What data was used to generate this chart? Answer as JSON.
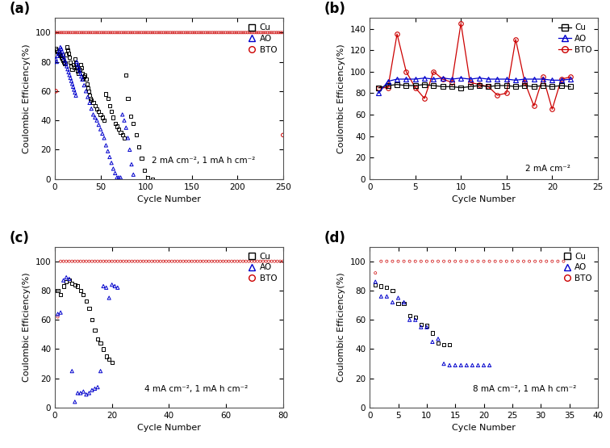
{
  "panel_a": {
    "title": "(a)",
    "xlabel": "Cycle Number",
    "ylabel": "Coulombic Efficiency(%)",
    "annotation": "2 mA cm⁻², 1 mA h cm⁻²",
    "xlim": [
      0,
      250
    ],
    "ylim": [
      0,
      110
    ],
    "xticks": [
      0,
      50,
      100,
      150,
      200,
      250
    ],
    "yticks": [
      0,
      20,
      40,
      60,
      80,
      100
    ],
    "Cu_x": [
      1,
      2,
      3,
      4,
      5,
      6,
      7,
      8,
      9,
      10,
      11,
      12,
      13,
      14,
      15,
      16,
      17,
      18,
      19,
      20,
      21,
      22,
      23,
      24,
      25,
      26,
      27,
      28,
      29,
      30,
      31,
      32,
      33,
      34,
      35,
      36,
      37,
      38,
      39,
      40,
      42,
      44,
      46,
      48,
      50,
      52,
      54,
      56,
      58,
      60,
      62,
      64,
      66,
      68,
      70,
      72,
      74,
      76,
      78,
      80,
      83,
      86,
      89,
      92,
      95,
      98,
      102,
      107
    ],
    "Cu_y": [
      89,
      88,
      87,
      86,
      85,
      84,
      83,
      82,
      81,
      80,
      79,
      85,
      90,
      88,
      86,
      83,
      80,
      77,
      75,
      78,
      76,
      82,
      79,
      76,
      74,
      72,
      75,
      78,
      76,
      72,
      68,
      70,
      71,
      68,
      65,
      62,
      60,
      57,
      55,
      54,
      52,
      50,
      48,
      46,
      44,
      42,
      40,
      58,
      55,
      50,
      46,
      42,
      38,
      36,
      34,
      32,
      30,
      28,
      71,
      55,
      43,
      38,
      30,
      22,
      14,
      6,
      1,
      0
    ],
    "AO_x": [
      1,
      2,
      3,
      4,
      5,
      6,
      7,
      8,
      9,
      10,
      11,
      12,
      13,
      14,
      15,
      16,
      17,
      18,
      19,
      20,
      21,
      22,
      23,
      24,
      25,
      26,
      27,
      28,
      29,
      30,
      32,
      34,
      36,
      38,
      40,
      42,
      44,
      46,
      48,
      50,
      52,
      54,
      56,
      58,
      60,
      62,
      64,
      66,
      68,
      70,
      72,
      74,
      76,
      78,
      80,
      82,
      84,
      86
    ],
    "AO_y": [
      82,
      80,
      84,
      86,
      88,
      90,
      89,
      87,
      85,
      83,
      81,
      79,
      77,
      75,
      73,
      71,
      69,
      67,
      65,
      63,
      61,
      59,
      57,
      80,
      78,
      76,
      74,
      72,
      70,
      68,
      64,
      60,
      56,
      52,
      48,
      44,
      42,
      40,
      37,
      34,
      31,
      28,
      23,
      19,
      15,
      11,
      7,
      4,
      1,
      1,
      1,
      44,
      40,
      35,
      28,
      20,
      10,
      3
    ],
    "BTO_x": [
      1,
      3,
      5,
      7,
      9,
      11,
      13,
      15,
      17,
      19,
      21,
      23,
      25,
      27,
      29,
      31,
      33,
      35,
      37,
      39,
      41,
      43,
      45,
      47,
      49,
      51,
      53,
      55,
      57,
      59,
      61,
      63,
      65,
      67,
      69,
      71,
      73,
      75,
      77,
      79,
      81,
      83,
      85,
      87,
      89,
      91,
      93,
      95,
      97,
      99,
      101,
      103,
      105,
      107,
      109,
      111,
      113,
      115,
      117,
      119,
      121,
      123,
      125,
      127,
      129,
      131,
      133,
      135,
      137,
      139,
      141,
      143,
      145,
      147,
      149,
      151,
      153,
      155,
      157,
      159,
      161,
      163,
      165,
      167,
      169,
      171,
      173,
      175,
      177,
      179,
      181,
      183,
      185,
      187,
      189,
      191,
      193,
      195,
      197,
      199,
      201,
      203,
      205,
      207,
      209,
      211,
      213,
      215,
      217,
      219,
      221,
      223,
      225,
      227,
      229,
      231,
      233,
      235,
      237,
      239,
      241,
      243,
      245,
      247,
      249
    ],
    "BTO_y": [
      100,
      100,
      100,
      100,
      100,
      100,
      100,
      100,
      100,
      100,
      100,
      100,
      100,
      100,
      100,
      100,
      100,
      100,
      100,
      100,
      100,
      100,
      100,
      100,
      100,
      100,
      100,
      100,
      100,
      100,
      100,
      100,
      100,
      100,
      100,
      100,
      100,
      100,
      100,
      100,
      100,
      100,
      100,
      100,
      100,
      100,
      100,
      100,
      100,
      100,
      100,
      100,
      100,
      100,
      100,
      100,
      100,
      100,
      100,
      100,
      100,
      100,
      100,
      100,
      100,
      100,
      100,
      100,
      100,
      100,
      100,
      100,
      100,
      100,
      100,
      100,
      100,
      100,
      100,
      100,
      100,
      100,
      100,
      100,
      100,
      100,
      100,
      100,
      100,
      100,
      100,
      100,
      100,
      100,
      100,
      100,
      100,
      100,
      100,
      100,
      100,
      100,
      100,
      100,
      100,
      100,
      100,
      100,
      100,
      100,
      100,
      100,
      100,
      100,
      100,
      100,
      100,
      100,
      100,
      100,
      100,
      100,
      100,
      100,
      100
    ],
    "BTO_x_low": [
      1
    ],
    "BTO_y_low": [
      60
    ],
    "BTO_x_end": [
      250
    ],
    "BTO_y_end": [
      30
    ]
  },
  "panel_b": {
    "title": "(b)",
    "xlabel": "Cycle Number",
    "ylabel": "Coulombic Efficiency(%)",
    "annotation": "2 mA cm⁻²",
    "xlim": [
      0,
      25
    ],
    "ylim": [
      0,
      150
    ],
    "xticks": [
      0,
      5,
      10,
      15,
      20,
      25
    ],
    "yticks": [
      0,
      20,
      40,
      60,
      80,
      100,
      120,
      140
    ],
    "Cu_x": [
      1,
      2,
      3,
      4,
      5,
      6,
      7,
      8,
      9,
      10,
      11,
      12,
      13,
      14,
      15,
      16,
      17,
      18,
      19,
      20,
      21,
      22
    ],
    "Cu_y": [
      85,
      87,
      88,
      87,
      87,
      88,
      87,
      86,
      86,
      85,
      86,
      87,
      86,
      87,
      87,
      86,
      87,
      86,
      87,
      86,
      87,
      86
    ],
    "AO_x": [
      1,
      2,
      3,
      4,
      5,
      6,
      7,
      8,
      9,
      10,
      11,
      12,
      13,
      14,
      15,
      16,
      17,
      18,
      19,
      20,
      21,
      22
    ],
    "AO_y": [
      80,
      91,
      93,
      93,
      93,
      94,
      93,
      94,
      93,
      94,
      93,
      94,
      93,
      93,
      93,
      92,
      93,
      93,
      93,
      92,
      92,
      93
    ],
    "BTO_x": [
      1,
      2,
      3,
      4,
      5,
      6,
      7,
      8,
      9,
      10,
      11,
      12,
      13,
      14,
      15,
      16,
      17,
      18,
      19,
      20,
      21,
      22
    ],
    "BTO_y": [
      85,
      85,
      135,
      100,
      85,
      75,
      100,
      93,
      90,
      145,
      90,
      88,
      86,
      78,
      80,
      130,
      90,
      68,
      95,
      65,
      93,
      95
    ]
  },
  "panel_c": {
    "title": "(c)",
    "xlabel": "Cycle Number",
    "ylabel": "Coulombic Efficiency(%)",
    "annotation": "4 mA cm⁻², 1 mA h cm⁻²",
    "xlim": [
      0,
      80
    ],
    "ylim": [
      0,
      110
    ],
    "xticks": [
      0,
      20,
      40,
      60,
      80
    ],
    "yticks": [
      0,
      20,
      40,
      60,
      80,
      100
    ],
    "Cu_x": [
      1,
      2,
      3,
      4,
      5,
      6,
      7,
      8,
      9,
      10,
      11,
      12,
      13,
      14,
      15,
      16,
      17,
      18,
      19,
      20
    ],
    "Cu_y": [
      80,
      77,
      83,
      86,
      87,
      85,
      84,
      83,
      80,
      77,
      73,
      68,
      60,
      53,
      47,
      44,
      40,
      35,
      33,
      31
    ],
    "AO_x": [
      1,
      2,
      3,
      4,
      5,
      6,
      7,
      8,
      9,
      10,
      11,
      12,
      13,
      14,
      15,
      16,
      17,
      18,
      19,
      20,
      21,
      22
    ],
    "AO_y": [
      64,
      65,
      87,
      89,
      88,
      25,
      4,
      10,
      10,
      11,
      9,
      10,
      12,
      13,
      14,
      25,
      83,
      82,
      75,
      84,
      83,
      82
    ],
    "BTO_x": [
      1,
      2,
      3,
      4,
      5,
      6,
      7,
      8,
      9,
      10,
      11,
      12,
      13,
      14,
      15,
      16,
      17,
      18,
      19,
      20,
      21,
      22,
      23,
      24,
      25,
      26,
      27,
      28,
      29,
      30,
      31,
      32,
      33,
      34,
      35,
      36,
      37,
      38,
      39,
      40,
      41,
      42,
      43,
      44,
      45,
      46,
      47,
      48,
      49,
      50,
      51,
      52,
      53,
      54,
      55,
      56,
      57,
      58,
      59,
      60,
      61,
      62,
      63,
      64,
      65,
      66,
      67,
      68,
      69,
      70,
      71,
      72,
      73,
      74,
      75,
      76,
      77,
      78,
      79,
      80
    ],
    "BTO_y": [
      62,
      100,
      100,
      100,
      100,
      100,
      100,
      100,
      100,
      100,
      100,
      100,
      100,
      100,
      100,
      100,
      100,
      100,
      100,
      100,
      100,
      100,
      100,
      100,
      100,
      100,
      100,
      100,
      100,
      100,
      100,
      100,
      100,
      100,
      100,
      100,
      100,
      100,
      100,
      100,
      100,
      100,
      100,
      100,
      100,
      100,
      100,
      100,
      100,
      100,
      100,
      100,
      100,
      100,
      100,
      100,
      100,
      100,
      100,
      100,
      100,
      100,
      100,
      100,
      100,
      100,
      100,
      100,
      100,
      100,
      100,
      100,
      100,
      100,
      100,
      100,
      100,
      100,
      100,
      100
    ]
  },
  "panel_d": {
    "title": "(d)",
    "xlabel": "Cycle Number",
    "ylabel": "Coulombic Efficiency(%)",
    "annotation": "8 mA cm⁻², 1 mA h cm⁻²",
    "xlim": [
      0,
      40
    ],
    "ylim": [
      0,
      110
    ],
    "xticks": [
      0,
      5,
      10,
      15,
      20,
      25,
      30,
      35,
      40
    ],
    "yticks": [
      0,
      20,
      40,
      60,
      80,
      100
    ],
    "Cu_x": [
      1,
      2,
      3,
      4,
      5,
      6,
      7,
      8,
      9,
      10,
      11,
      12,
      13,
      14
    ],
    "Cu_y": [
      84,
      83,
      82,
      80,
      71,
      71,
      63,
      62,
      57,
      56,
      51,
      44,
      43,
      43
    ],
    "AO_x": [
      1,
      2,
      3,
      4,
      5,
      6,
      7,
      8,
      9,
      10,
      11,
      12,
      13,
      14,
      15,
      16,
      17,
      18,
      19,
      20,
      21
    ],
    "AO_y": [
      86,
      76,
      76,
      72,
      75,
      72,
      60,
      60,
      55,
      55,
      45,
      47,
      30,
      29,
      29,
      29,
      29,
      29,
      29,
      29,
      29
    ],
    "BTO_x": [
      1,
      2,
      3,
      4,
      5,
      6,
      7,
      8,
      9,
      10,
      11,
      12,
      13,
      14,
      15,
      16,
      17,
      18,
      19,
      20,
      21,
      22,
      23,
      24,
      25,
      26,
      27,
      28,
      29,
      30,
      31,
      32,
      33,
      34
    ],
    "BTO_y": [
      92,
      100,
      100,
      100,
      100,
      100,
      100,
      100,
      100,
      100,
      100,
      100,
      100,
      100,
      100,
      100,
      100,
      100,
      100,
      100,
      100,
      100,
      100,
      100,
      100,
      100,
      100,
      100,
      100,
      100,
      100,
      100,
      100,
      100
    ]
  },
  "colors": {
    "Cu": "#000000",
    "AO": "#0000cc",
    "BTO": "#cc0000"
  }
}
